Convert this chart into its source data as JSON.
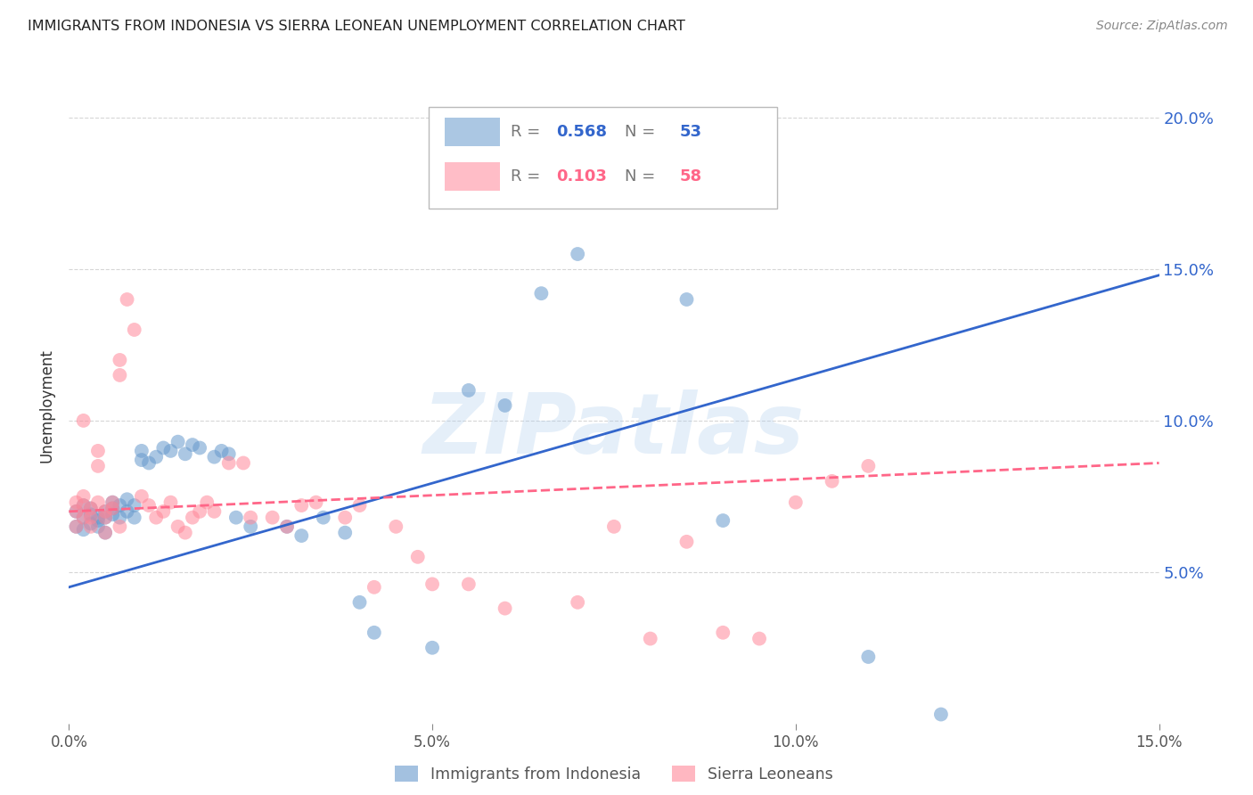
{
  "title": "IMMIGRANTS FROM INDONESIA VS SIERRA LEONEAN UNEMPLOYMENT CORRELATION CHART",
  "source": "Source: ZipAtlas.com",
  "ylabel": "Unemployment",
  "xlim": [
    0.0,
    0.15
  ],
  "ylim": [
    0.0,
    0.21
  ],
  "yticks": [
    0.05,
    0.1,
    0.15,
    0.2
  ],
  "ytick_labels": [
    "5.0%",
    "10.0%",
    "15.0%",
    "20.0%"
  ],
  "xticks": [
    0.0,
    0.05,
    0.1,
    0.15
  ],
  "xtick_labels": [
    "0.0%",
    "5.0%",
    "10.0%",
    "15.0%"
  ],
  "blue_label": "Immigrants from Indonesia",
  "pink_label": "Sierra Leoneans",
  "blue_R": "0.568",
  "blue_N": "53",
  "pink_R": "0.103",
  "pink_N": "58",
  "blue_color": "#6699CC",
  "pink_color": "#FF8899",
  "trend_blue_color": "#3366CC",
  "trend_pink_color": "#FF6688",
  "watermark": "ZIPatlas",
  "watermark_color": "#AACCEE",
  "background_color": "#FFFFFF",
  "blue_scatter_x": [
    0.001,
    0.001,
    0.002,
    0.002,
    0.002,
    0.003,
    0.003,
    0.003,
    0.004,
    0.004,
    0.004,
    0.005,
    0.005,
    0.005,
    0.006,
    0.006,
    0.006,
    0.007,
    0.007,
    0.008,
    0.008,
    0.009,
    0.009,
    0.01,
    0.01,
    0.011,
    0.012,
    0.013,
    0.014,
    0.015,
    0.016,
    0.017,
    0.018,
    0.02,
    0.021,
    0.022,
    0.023,
    0.025,
    0.03,
    0.032,
    0.035,
    0.038,
    0.04,
    0.042,
    0.05,
    0.055,
    0.06,
    0.065,
    0.07,
    0.085,
    0.09,
    0.11,
    0.12
  ],
  "blue_scatter_y": [
    0.07,
    0.065,
    0.068,
    0.072,
    0.064,
    0.066,
    0.069,
    0.071,
    0.068,
    0.065,
    0.067,
    0.07,
    0.068,
    0.063,
    0.071,
    0.073,
    0.069,
    0.072,
    0.068,
    0.074,
    0.07,
    0.072,
    0.068,
    0.087,
    0.09,
    0.086,
    0.088,
    0.091,
    0.09,
    0.093,
    0.089,
    0.092,
    0.091,
    0.088,
    0.09,
    0.089,
    0.068,
    0.065,
    0.065,
    0.062,
    0.068,
    0.063,
    0.04,
    0.03,
    0.025,
    0.11,
    0.105,
    0.142,
    0.155,
    0.14,
    0.067,
    0.022,
    0.003
  ],
  "pink_scatter_x": [
    0.001,
    0.001,
    0.001,
    0.002,
    0.002,
    0.002,
    0.002,
    0.003,
    0.003,
    0.003,
    0.004,
    0.004,
    0.004,
    0.005,
    0.005,
    0.005,
    0.006,
    0.006,
    0.007,
    0.007,
    0.007,
    0.008,
    0.009,
    0.01,
    0.011,
    0.012,
    0.013,
    0.014,
    0.015,
    0.016,
    0.017,
    0.018,
    0.019,
    0.02,
    0.022,
    0.024,
    0.025,
    0.028,
    0.03,
    0.032,
    0.034,
    0.038,
    0.04,
    0.042,
    0.045,
    0.048,
    0.05,
    0.055,
    0.06,
    0.07,
    0.075,
    0.08,
    0.085,
    0.09,
    0.095,
    0.1,
    0.105,
    0.11
  ],
  "pink_scatter_y": [
    0.07,
    0.073,
    0.065,
    0.072,
    0.1,
    0.068,
    0.075,
    0.071,
    0.068,
    0.065,
    0.073,
    0.09,
    0.085,
    0.063,
    0.068,
    0.07,
    0.073,
    0.071,
    0.12,
    0.115,
    0.065,
    0.14,
    0.13,
    0.075,
    0.072,
    0.068,
    0.07,
    0.073,
    0.065,
    0.063,
    0.068,
    0.07,
    0.073,
    0.07,
    0.086,
    0.086,
    0.068,
    0.068,
    0.065,
    0.072,
    0.073,
    0.068,
    0.072,
    0.045,
    0.065,
    0.055,
    0.046,
    0.046,
    0.038,
    0.04,
    0.065,
    0.028,
    0.06,
    0.03,
    0.028,
    0.073,
    0.08,
    0.085
  ],
  "blue_trend_x0": 0.0,
  "blue_trend_y0": 0.045,
  "blue_trend_x1": 0.15,
  "blue_trend_y1": 0.148,
  "pink_trend_x0": 0.0,
  "pink_trend_y0": 0.07,
  "pink_trend_x1": 0.15,
  "pink_trend_y1": 0.086
}
